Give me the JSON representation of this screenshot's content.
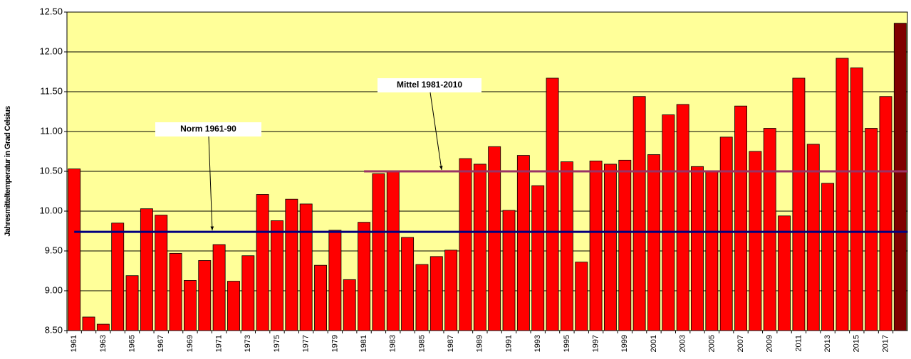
{
  "chart_data": {
    "type": "bar",
    "y_label": "Jahresmitteltemperatur in Grad Celsius",
    "categories": [
      "1961",
      null,
      "1963",
      null,
      "1965",
      null,
      "1967",
      null,
      "1969",
      null,
      "1971",
      null,
      "1973",
      null,
      "1975",
      null,
      "1977",
      null,
      "1979",
      null,
      "1981",
      null,
      "1983",
      null,
      "1985",
      null,
      "1987",
      null,
      "1989",
      null,
      "1991",
      null,
      "1993",
      null,
      "1995",
      null,
      "1997",
      null,
      "1999",
      null,
      "2001",
      null,
      "2003",
      null,
      "2005",
      null,
      "2007",
      null,
      "2009",
      null,
      "2011",
      null,
      "2013",
      null,
      "2015",
      null,
      "2017",
      null
    ],
    "values": [
      10.53,
      8.67,
      8.58,
      9.85,
      9.19,
      10.03,
      9.95,
      9.47,
      9.13,
      9.38,
      9.58,
      9.12,
      9.44,
      10.21,
      9.88,
      10.15,
      10.09,
      9.32,
      9.76,
      9.14,
      9.86,
      10.47,
      10.5,
      9.67,
      9.33,
      9.43,
      9.51,
      10.66,
      10.59,
      10.81,
      10.01,
      10.7,
      10.32,
      11.67,
      10.62,
      9.36,
      10.63,
      10.59,
      10.64,
      11.44,
      10.71,
      11.21,
      11.34,
      10.56,
      10.5,
      10.93,
      11.32,
      10.75,
      11.04,
      9.94,
      11.67,
      10.84,
      10.35,
      11.92,
      11.8,
      11.04,
      11.44,
      12.36
    ],
    "colors": [
      "#ff0000",
      "#ff0000",
      "#ff0000",
      "#ff0000",
      "#ff0000",
      "#ff0000",
      "#ff0000",
      "#ff0000",
      "#ff0000",
      "#ff0000",
      "#ff0000",
      "#ff0000",
      "#ff0000",
      "#ff0000",
      "#ff0000",
      "#ff0000",
      "#ff0000",
      "#ff0000",
      "#ff0000",
      "#ff0000",
      "#ff0000",
      "#ff0000",
      "#ff0000",
      "#ff0000",
      "#ff0000",
      "#ff0000",
      "#ff0000",
      "#ff0000",
      "#ff0000",
      "#ff0000",
      "#ff0000",
      "#ff0000",
      "#ff0000",
      "#ff0000",
      "#ff0000",
      "#ff0000",
      "#ff0000",
      "#ff0000",
      "#ff0000",
      "#ff0000",
      "#ff0000",
      "#ff0000",
      "#ff0000",
      "#ff0000",
      "#ff0000",
      "#ff0000",
      "#ff0000",
      "#ff0000",
      "#ff0000",
      "#ff0000",
      "#ff0000",
      "#ff0000",
      "#ff0000",
      "#ff0000",
      "#ff0000",
      "#ff0000",
      "#ff0000",
      "#800000"
    ],
    "ylim": [
      8.5,
      12.5
    ],
    "yticks": [
      {
        "value": 8.5,
        "label": "8.50"
      },
      {
        "value": 9,
        "label": "9.00"
      },
      {
        "value": 9.5,
        "label": "9.50"
      },
      {
        "value": 10,
        "label": "10.00"
      },
      {
        "value": 10.5,
        "label": "10.50"
      },
      {
        "value": 11,
        "label": "11.00"
      },
      {
        "value": 11.5,
        "label": "11.50"
      },
      {
        "value": 12,
        "label": "12.00"
      },
      {
        "value": 12.5,
        "label": "12.50"
      }
    ],
    "grid": true,
    "background": "#ffff99",
    "reference_lines": [
      {
        "label": "Norm 1961-90",
        "value": 9.74,
        "color": "#000080",
        "start": "1961"
      },
      {
        "label": "Mittel 1981-2010",
        "value": 10.5,
        "color": "#993366",
        "start": "1981"
      }
    ]
  }
}
